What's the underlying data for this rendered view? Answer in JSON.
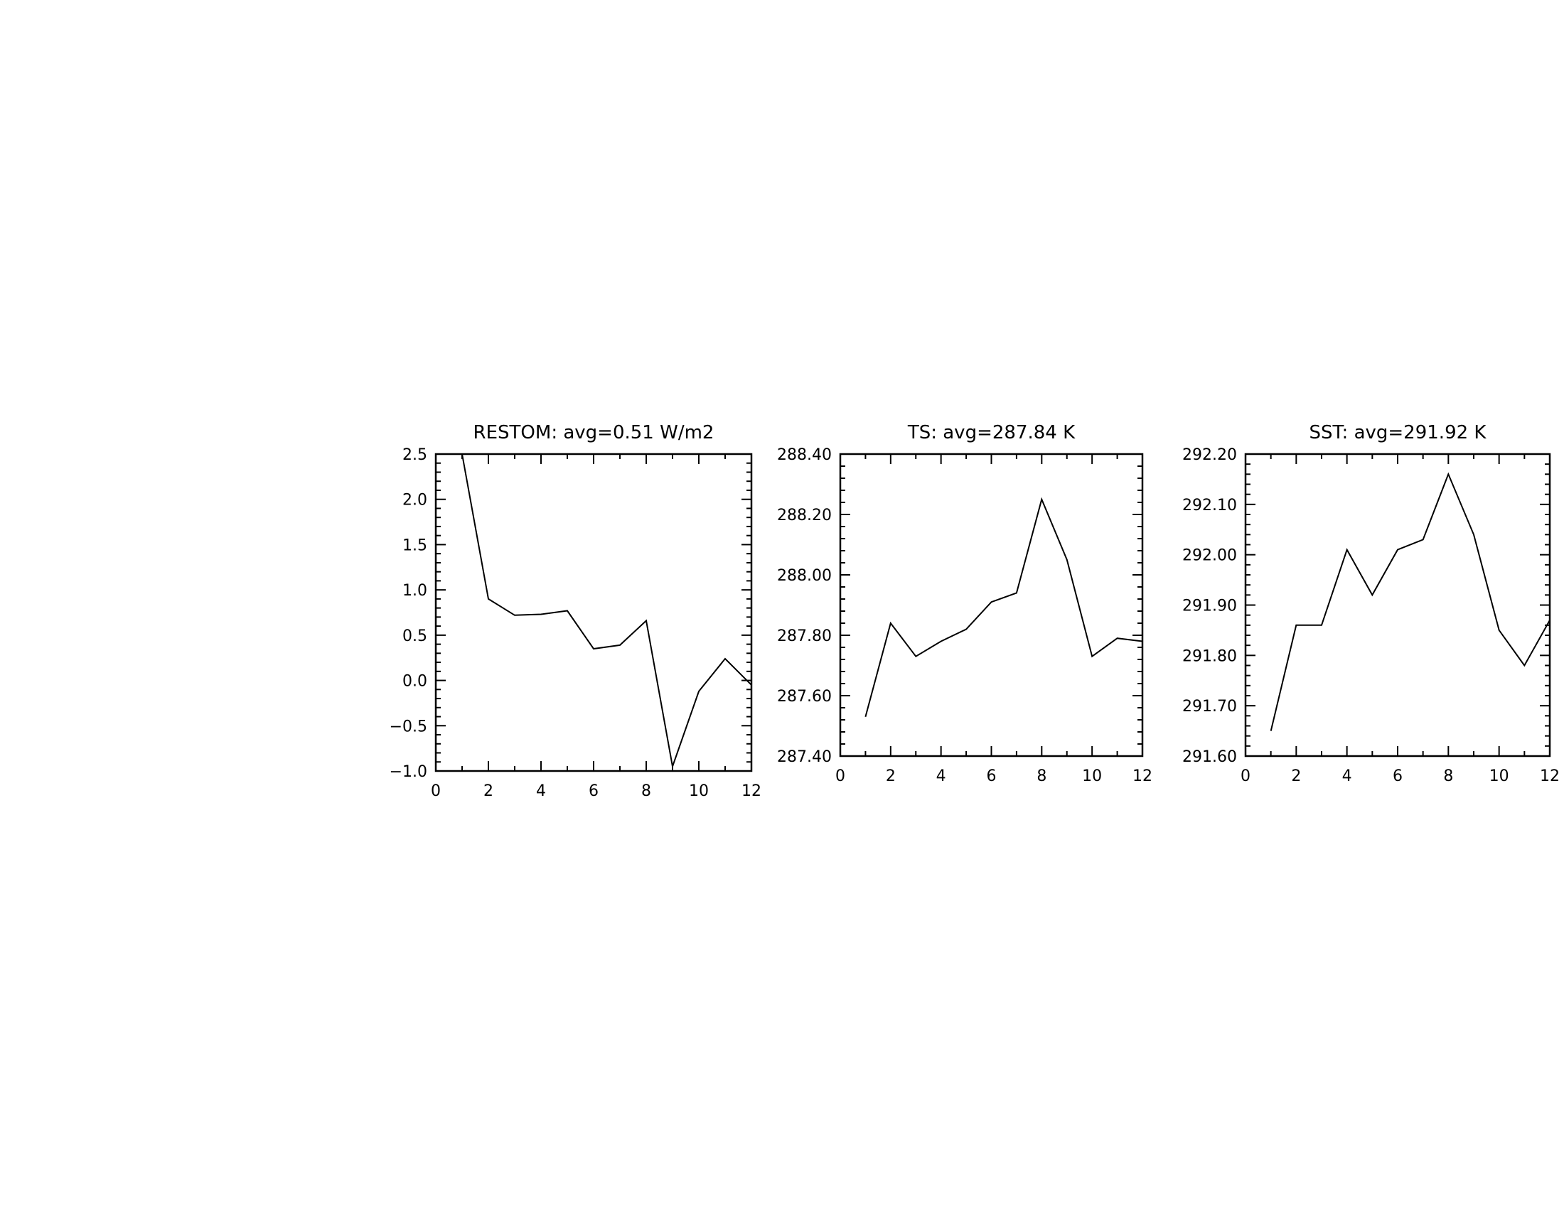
{
  "chart_data": [
    {
      "type": "line",
      "title": "RESTOM: avg=0.51 W/m2",
      "xlabel": "",
      "ylabel": "",
      "xlim": [
        0,
        12
      ],
      "ylim": [
        -1.0,
        2.5
      ],
      "xticks": [
        "0",
        "2",
        "4",
        "6",
        "8",
        "10",
        "12"
      ],
      "yticks": [
        "-1.0",
        "-0.5",
        "0.0",
        "0.5",
        "1.0",
        "1.5",
        "2.0",
        "2.5"
      ],
      "x": [
        1,
        2,
        3,
        4,
        5,
        6,
        7,
        8,
        9,
        10,
        11,
        12
      ],
      "values": [
        2.5,
        0.9,
        0.72,
        0.73,
        0.77,
        0.35,
        0.39,
        0.66,
        -0.95,
        -0.12,
        0.24,
        -0.05
      ],
      "grid": false,
      "color": "#000000"
    },
    {
      "type": "line",
      "title": "TS: avg=287.84 K",
      "xlabel": "",
      "ylabel": "",
      "xlim": [
        0,
        12
      ],
      "ylim": [
        287.4,
        288.4
      ],
      "xticks": [
        "0",
        "2",
        "4",
        "6",
        "8",
        "10",
        "12"
      ],
      "yticks": [
        "287.40",
        "287.60",
        "287.80",
        "288.00",
        "288.20",
        "288.40"
      ],
      "x": [
        1,
        2,
        3,
        4,
        5,
        6,
        7,
        8,
        9,
        10,
        11,
        12
      ],
      "values": [
        287.53,
        287.84,
        287.73,
        287.78,
        287.82,
        287.91,
        287.94,
        288.25,
        288.05,
        287.73,
        287.79,
        287.78
      ],
      "grid": false,
      "color": "#000000"
    },
    {
      "type": "line",
      "title": "SST: avg=291.92 K",
      "xlabel": "",
      "ylabel": "",
      "xlim": [
        0,
        12
      ],
      "ylim": [
        291.6,
        292.2
      ],
      "xticks": [
        "0",
        "2",
        "4",
        "6",
        "8",
        "10",
        "12"
      ],
      "yticks": [
        "291.60",
        "291.70",
        "291.80",
        "291.90",
        "292.00",
        "292.10",
        "292.20"
      ],
      "x": [
        1,
        2,
        3,
        4,
        5,
        6,
        7,
        8,
        9,
        10,
        11,
        12
      ],
      "values": [
        291.65,
        291.86,
        291.86,
        292.01,
        291.92,
        292.01,
        292.03,
        292.16,
        292.04,
        291.85,
        291.78,
        291.87
      ],
      "grid": false,
      "color": "#000000"
    }
  ]
}
